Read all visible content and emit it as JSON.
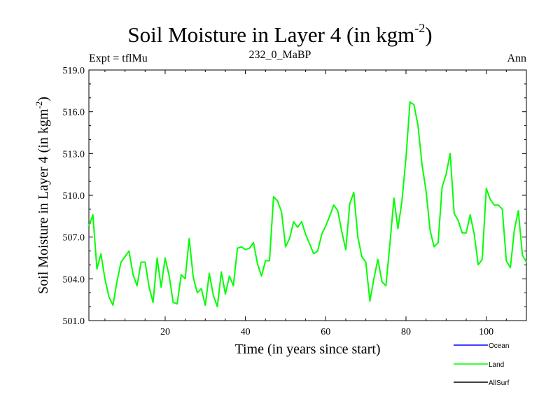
{
  "header": {
    "title_main": "Soil Moisture in Layer 4 (in kgm",
    "title_sup": "-2",
    "title_close": ")",
    "expt_label": "Expt = tflMu",
    "subtitle": "232_0_MaBP",
    "season": "Ann"
  },
  "chart_data": {
    "type": "line",
    "title": "Soil Moisture in Layer 4 (in kgm-2)",
    "xlabel": "Time (in years since start)",
    "ylabel_main": "Soil Moisture in Layer 4 (in kgm",
    "ylabel_sup": "-2",
    "ylabel_close": ")",
    "xlim": [
      1,
      110
    ],
    "ylim": [
      501.0,
      519.0
    ],
    "x_ticks": [
      20,
      40,
      60,
      80,
      100
    ],
    "x_tick_labels": [
      "20",
      "40",
      "60",
      "80",
      "100"
    ],
    "y_ticks": [
      501.0,
      504.0,
      507.0,
      510.0,
      513.0,
      516.0,
      519.0
    ],
    "y_tick_labels": [
      "501.0",
      "504.0",
      "507.0",
      "510.0",
      "513.0",
      "516.0",
      "519.0"
    ],
    "legend": [
      {
        "name": "Ocean",
        "color": "#0000ff"
      },
      {
        "name": "Land",
        "color": "#00ff00"
      },
      {
        "name": "AllSurf",
        "color": "#000000"
      }
    ],
    "series": [
      {
        "name": "Land",
        "color": "#00ff00",
        "x": [
          1,
          2,
          3,
          4,
          5,
          6,
          7,
          8,
          9,
          10,
          11,
          12,
          13,
          14,
          15,
          16,
          17,
          18,
          19,
          20,
          21,
          22,
          23,
          24,
          25,
          26,
          27,
          28,
          29,
          30,
          31,
          32,
          33,
          34,
          35,
          36,
          37,
          38,
          39,
          40,
          41,
          42,
          43,
          44,
          45,
          46,
          47,
          48,
          49,
          50,
          51,
          52,
          53,
          54,
          55,
          56,
          57,
          58,
          59,
          60,
          61,
          62,
          63,
          64,
          65,
          66,
          67,
          68,
          69,
          70,
          71,
          72,
          73,
          74,
          75,
          76,
          77,
          78,
          79,
          80,
          81,
          82,
          83,
          84,
          85,
          86,
          87,
          88,
          89,
          90,
          91,
          92,
          93,
          94,
          95,
          96,
          97,
          98,
          99,
          100,
          101,
          102,
          103,
          104,
          105,
          106,
          107,
          108,
          109,
          110
        ],
        "values": [
          507.8,
          508.6,
          504.7,
          505.8,
          504.0,
          502.7,
          502.1,
          503.8,
          505.2,
          505.6,
          506.0,
          504.3,
          503.5,
          505.2,
          505.2,
          503.4,
          502.3,
          505.5,
          503.4,
          505.5,
          504.2,
          502.3,
          502.2,
          504.3,
          504.0,
          506.9,
          504.1,
          503.0,
          503.3,
          502.1,
          504.4,
          502.8,
          502.0,
          504.5,
          502.9,
          504.2,
          503.5,
          506.2,
          506.3,
          506.1,
          506.2,
          506.6,
          505.1,
          504.2,
          505.3,
          505.3,
          509.9,
          509.6,
          508.8,
          506.3,
          506.9,
          508.1,
          507.7,
          508.1,
          507.2,
          506.5,
          505.8,
          506.0,
          507.2,
          507.8,
          508.5,
          509.3,
          508.9,
          507.4,
          506.1,
          509.4,
          510.2,
          507.0,
          505.6,
          505.2,
          502.4,
          504.0,
          505.4,
          503.8,
          503.5,
          506.5,
          509.8,
          507.6,
          509.6,
          512.7,
          516.7,
          516.5,
          515.0,
          512.2,
          510.3,
          507.5,
          506.3,
          506.6,
          510.6,
          511.5,
          513.0,
          508.7,
          508.2,
          507.3,
          507.3,
          508.6,
          507.2,
          505.0,
          505.4,
          510.5,
          509.7,
          509.3,
          509.3,
          509.0,
          505.3,
          504.8,
          507.5,
          508.9,
          505.7,
          505.2
        ]
      }
    ]
  }
}
